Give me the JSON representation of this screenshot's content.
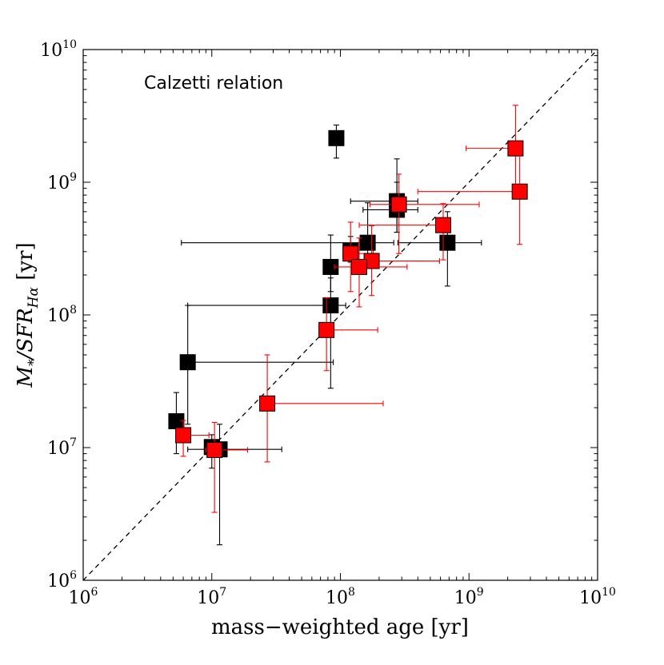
{
  "chart_data": {
    "type": "scatter",
    "title": "",
    "annotation": "Calzetti relation",
    "xlabel": "mass−weighted age [yr]",
    "ylabel_parts": {
      "main": "M",
      "sub1": "*",
      "mid": "/SFR",
      "sub2": "Hα",
      "end": " [yr]"
    },
    "x_scale": "log",
    "y_scale": "log",
    "xlim": [
      1000000,
      10000000000
    ],
    "ylim": [
      1000000,
      10000000000
    ],
    "x_ticks": [
      {
        "base": "10",
        "exp": "6",
        "value": 1000000
      },
      {
        "base": "10",
        "exp": "7",
        "value": 10000000
      },
      {
        "base": "10",
        "exp": "8",
        "value": 100000000
      },
      {
        "base": "10",
        "exp": "9",
        "value": 1000000000
      },
      {
        "base": "10",
        "exp": "10",
        "value": 10000000000
      }
    ],
    "y_ticks": [
      {
        "base": "10",
        "exp": "6",
        "value": 1000000
      },
      {
        "base": "10",
        "exp": "7",
        "value": 10000000
      },
      {
        "base": "10",
        "exp": "8",
        "value": 100000000
      },
      {
        "base": "10",
        "exp": "9",
        "value": 1000000000
      },
      {
        "base": "10",
        "exp": "10",
        "value": 10000000000
      }
    ],
    "grid": false,
    "reference_line": {
      "style": "dashed",
      "from": [
        1000000,
        1000000
      ],
      "to": [
        10000000000,
        10000000000
      ]
    },
    "series": [
      {
        "color": "#000000",
        "points": [
          {
            "x": 93000000,
            "y": 2150000000,
            "xerr": [
              86000000,
              104000000
            ],
            "yerr": [
              1520000000,
              2700000000
            ]
          },
          {
            "x": 275000000,
            "y": 720000000,
            "xerr": [
              120000000,
              400000000
            ],
            "yerr": [
              420000000,
              1500000000
            ]
          },
          {
            "x": 275000000,
            "y": 620000000,
            "xerr": [
              150000000,
              400000000
            ],
            "yerr": [
              420000000,
              1000000000
            ]
          },
          {
            "x": 163000000,
            "y": 350000000,
            "xerr": [
              5800000,
              260000000
            ],
            "yerr": [
              250000000,
              700000000
            ]
          },
          {
            "x": 120000000,
            "y": 305000000,
            "xerr": [
              112000000,
              130000000
            ],
            "yerr": [
              250000000,
              390000000
            ]
          },
          {
            "x": 680000000,
            "y": 350000000,
            "xerr": [
              280000000,
              1250000000
            ],
            "yerr": [
              165000000,
              600000000
            ]
          },
          {
            "x": 84000000,
            "y": 230000000,
            "xerr": [
              78000000,
              90000000
            ],
            "yerr": [
              150000000,
              400000000
            ]
          },
          {
            "x": 84000000,
            "y": 118000000,
            "xerr": [
              6500000,
              110000000
            ],
            "yerr": [
              28000000,
              190000000
            ]
          },
          {
            "x": 6500000,
            "y": 44000000,
            "xerr": [
              6000000,
              88000000
            ],
            "yerr": [
              15000000,
              118000000
            ]
          },
          {
            "x": 5300000,
            "y": 15800000,
            "xerr": [
              5000000,
              5600000
            ],
            "yerr": [
              9000000,
              26000000
            ]
          },
          {
            "x": 10000000,
            "y": 10100000,
            "xerr": [
              9500000,
              11000000
            ],
            "yerr": [
              7000000,
              12500000
            ]
          },
          {
            "x": 11500000,
            "y": 9700000,
            "xerr": [
              6500000,
              35000000
            ],
            "yerr": [
              1850000,
              15000000
            ]
          }
        ]
      },
      {
        "color": "#ff0000",
        "points": [
          {
            "x": 2300000000,
            "y": 1800000000,
            "xerr": [
              950000000,
              2350000000
            ],
            "yerr": [
              900000000,
              3800000000
            ]
          },
          {
            "x": 2480000000,
            "y": 850000000,
            "xerr": [
              400000000,
              2520000000
            ],
            "yerr": [
              340000000,
              1800000000
            ]
          },
          {
            "x": 285000000,
            "y": 680000000,
            "xerr": [
              170000000,
              1200000000
            ],
            "yerr": [
              290000000,
              1150000000
            ]
          },
          {
            "x": 630000000,
            "y": 475000000,
            "xerr": [
              140000000,
              690000000
            ],
            "yerr": [
              260000000,
              690000000
            ]
          },
          {
            "x": 120000000,
            "y": 290000000,
            "xerr": [
              110000000,
              180000000
            ],
            "yerr": [
              150000000,
              500000000
            ]
          },
          {
            "x": 175000000,
            "y": 255000000,
            "xerr": [
              130000000,
              590000000
            ],
            "yerr": [
              140000000,
              470000000
            ]
          },
          {
            "x": 140000000,
            "y": 230000000,
            "xerr": [
              90000000,
              330000000
            ],
            "yerr": [
              115000000,
              380000000
            ]
          },
          {
            "x": 78000000,
            "y": 77000000,
            "xerr": [
              73000000,
              195000000
            ],
            "yerr": [
              38000000,
              135000000
            ]
          },
          {
            "x": 27000000,
            "y": 21500000,
            "xerr": [
              25000000,
              215000000
            ],
            "yerr": [
              7800000,
              50000000
            ]
          },
          {
            "x": 6000000,
            "y": 12400000,
            "xerr": [
              5600000,
              9500000
            ],
            "yerr": [
              8600000,
              16000000
            ]
          },
          {
            "x": 10500000,
            "y": 9600000,
            "xerr": [
              9000000,
              19000000
            ],
            "yerr": [
              3250000,
              15500000
            ]
          }
        ]
      }
    ]
  }
}
